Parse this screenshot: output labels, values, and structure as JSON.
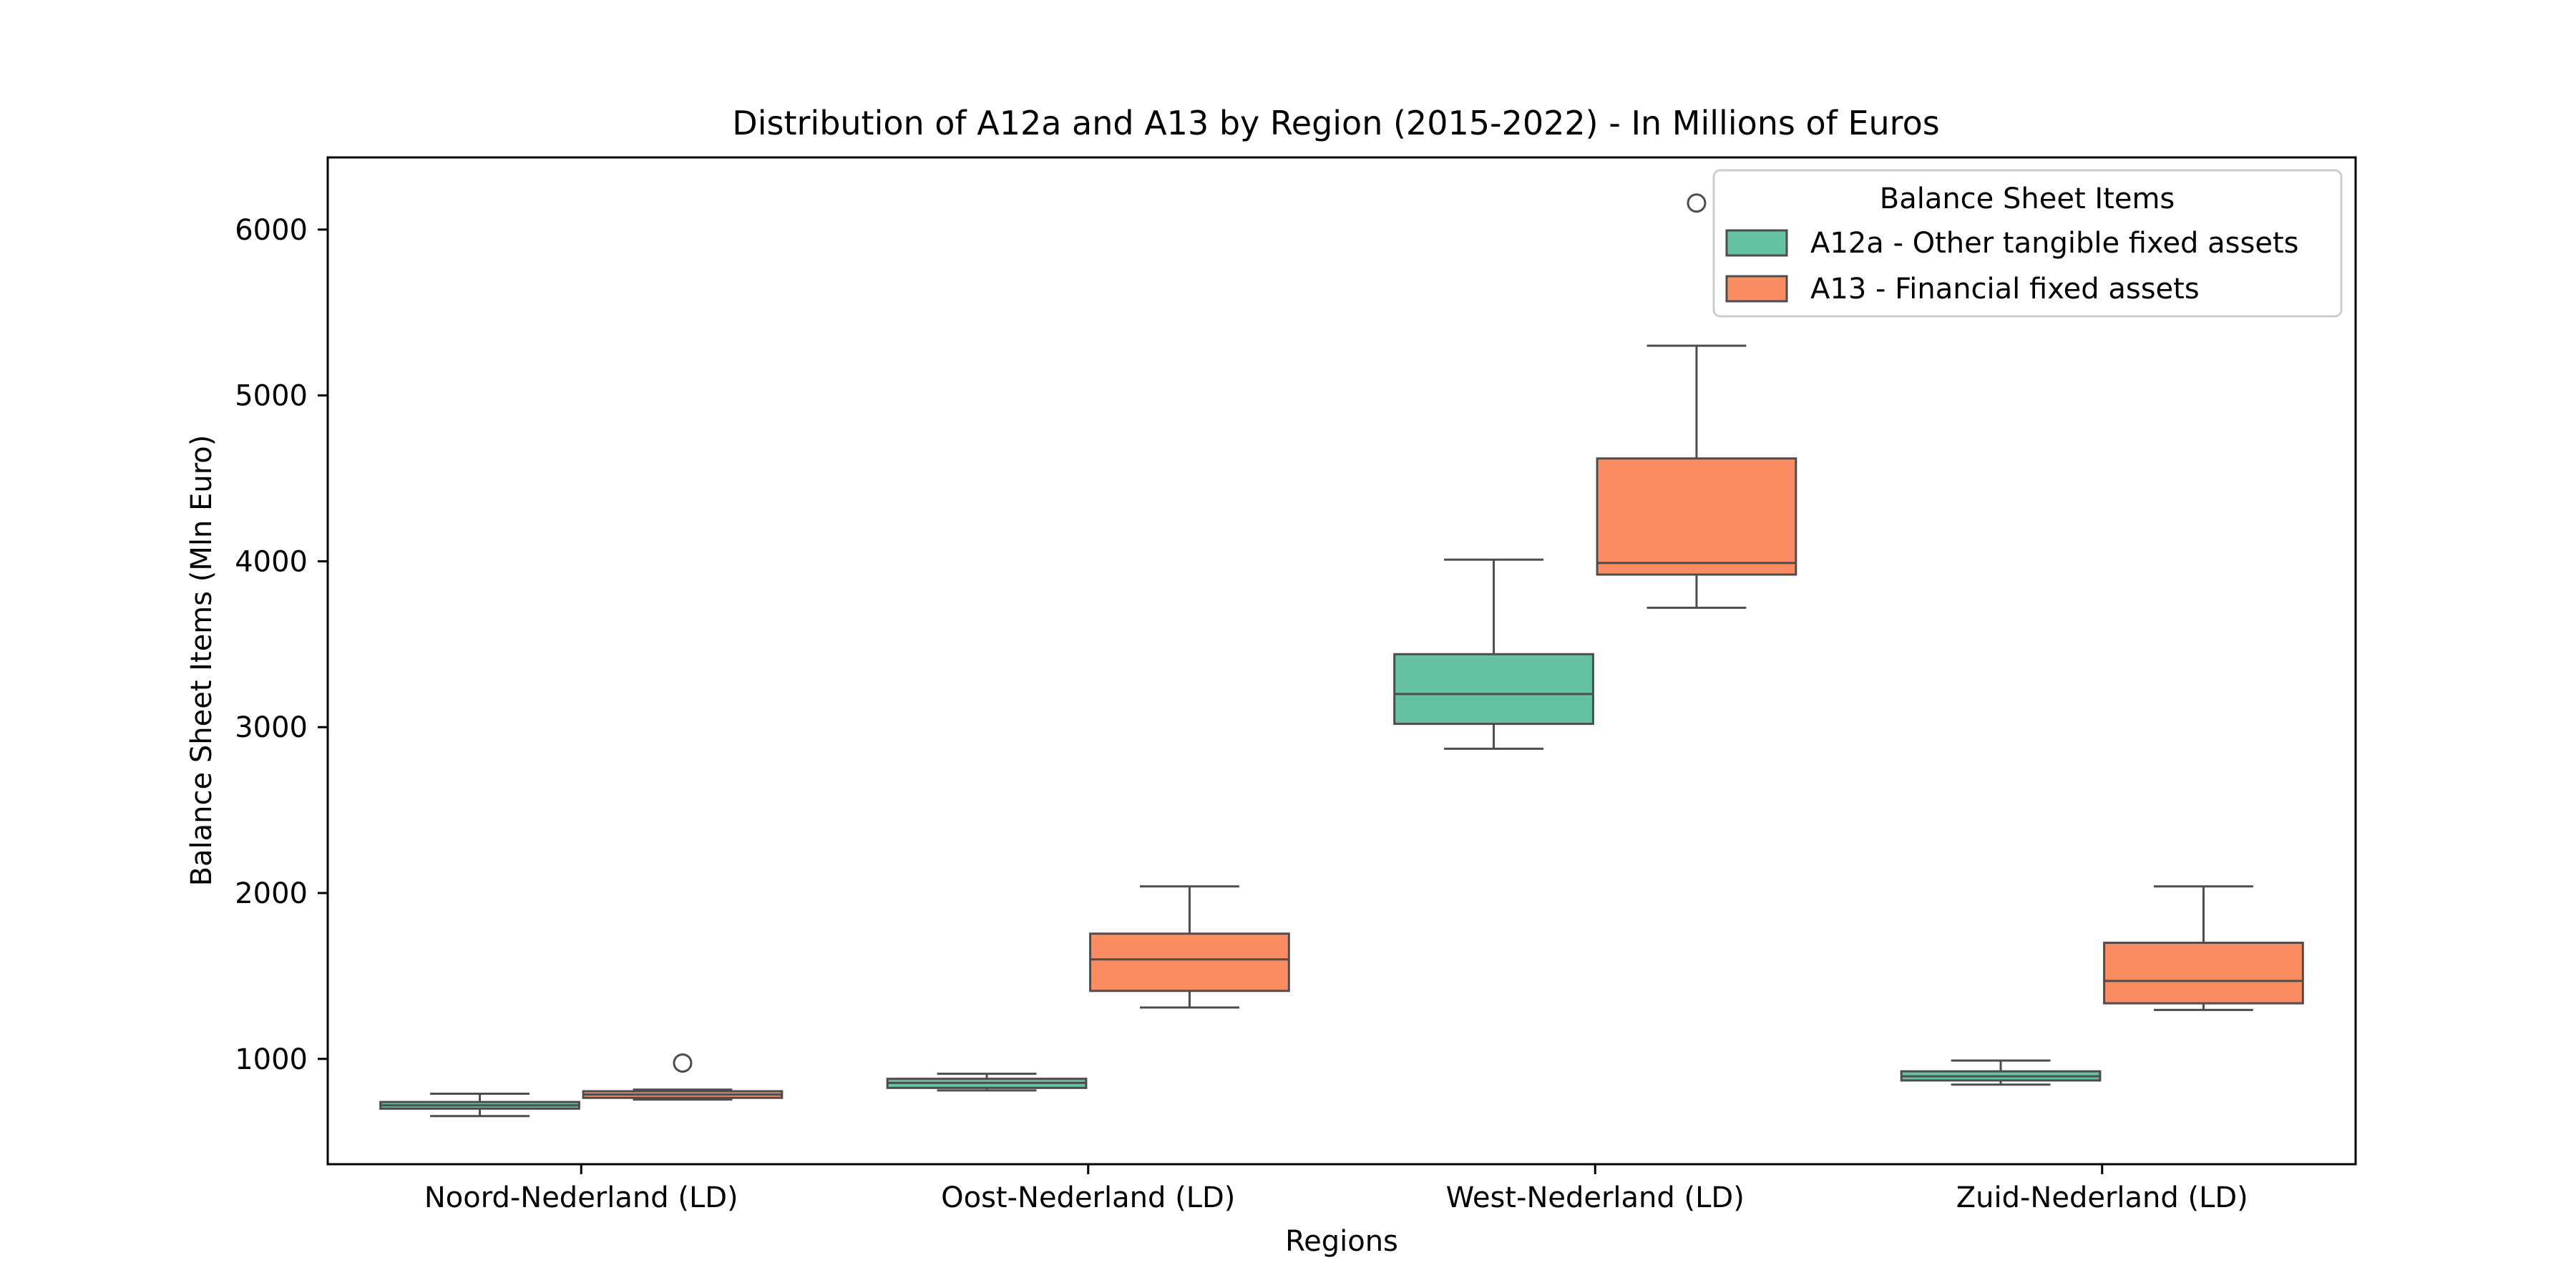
{
  "chart_data": {
    "type": "box",
    "title": "Distribution of A12a and A13 by Region (2015-2022) - In Millions of Euros",
    "xlabel": "Regions",
    "ylabel": "Balance Sheet Items (Mln Euro)",
    "categories": [
      "Noord-Nederland (LD)",
      "Oost-Nederland (LD)",
      "West-Nederland (LD)",
      "Zuid-Nederland (LD)"
    ],
    "ylim": [
      365,
      6435
    ],
    "yticks": [
      1000,
      2000,
      3000,
      4000,
      5000,
      6000
    ],
    "grid": false,
    "legend": {
      "title": "Balance Sheet Items",
      "placement": "top-right"
    },
    "series": [
      {
        "name": "A12a - Other tangible fixed assets",
        "color": "#66c2a5",
        "boxes": [
          {
            "whisker_low": 655,
            "q1": 700,
            "median": 720,
            "q3": 740,
            "whisker_high": 790,
            "outliers": []
          },
          {
            "whisker_low": 810,
            "q1": 825,
            "median": 855,
            "q3": 880,
            "whisker_high": 910,
            "outliers": []
          },
          {
            "whisker_low": 2870,
            "q1": 3020,
            "median": 3200,
            "q3": 3440,
            "whisker_high": 4010,
            "outliers": []
          },
          {
            "whisker_low": 845,
            "q1": 870,
            "median": 895,
            "q3": 925,
            "whisker_high": 990,
            "outliers": []
          }
        ]
      },
      {
        "name": "A13 - Financial fixed assets",
        "color": "#fc8d62",
        "boxes": [
          {
            "whisker_low": 755,
            "q1": 765,
            "median": 785,
            "q3": 805,
            "whisker_high": 815,
            "outliers": [
              975
            ]
          },
          {
            "whisker_low": 1310,
            "q1": 1410,
            "median": 1600,
            "q3": 1755,
            "whisker_high": 2040,
            "outliers": []
          },
          {
            "whisker_low": 3720,
            "q1": 3920,
            "median": 3990,
            "q3": 4620,
            "whisker_high": 5300,
            "outliers": [
              6160
            ]
          },
          {
            "whisker_low": 1295,
            "q1": 1335,
            "median": 1470,
            "q3": 1700,
            "whisker_high": 2040,
            "outliers": []
          }
        ]
      }
    ]
  }
}
